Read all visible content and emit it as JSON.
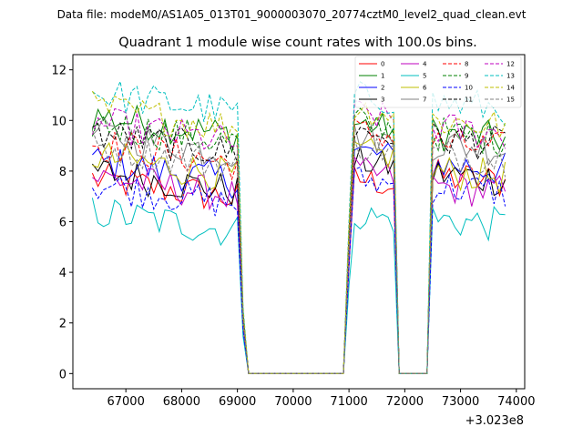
{
  "figure": {
    "suptitle": "Data file: modeM0/AS1A05_013T01_9000003070_20774cztM0_level2_quad_clean.evt"
  },
  "chart_data": {
    "type": "line",
    "title": "Quadrant 1 module wise count rates with 100.0s bins.",
    "xlabel": "",
    "ylabel": "",
    "x_offset_label": "+3.023e8",
    "x_offset": 302300000,
    "xlim": [
      66050,
      74150
    ],
    "ylim": [
      -0.6,
      12.6
    ],
    "xticks": [
      67000,
      68000,
      69000,
      70000,
      71000,
      72000,
      73000,
      74000
    ],
    "yticks": [
      0,
      2,
      4,
      6,
      8,
      10,
      12
    ],
    "xtick_labels": [
      "67000",
      "68000",
      "69000",
      "70000",
      "71000",
      "72000",
      "73000",
      "74000"
    ],
    "ytick_labels": [
      "0",
      "2",
      "4",
      "6",
      "8",
      "10",
      "12"
    ],
    "legend_position": "upper-right",
    "segments": [
      [
        66400,
        69200
      ],
      [
        69200,
        70900
      ],
      [
        70900,
        71800
      ],
      [
        71800,
        72400
      ],
      [
        72400,
        73800
      ]
    ],
    "series": [
      {
        "name": "0",
        "color": "#ff0000",
        "dash": "solid",
        "level": [
          7.2,
          7.7,
          7.5
        ]
      },
      {
        "name": "1",
        "color": "#008000",
        "dash": "solid",
        "level": [
          9.7,
          9.9,
          9.2
        ]
      },
      {
        "name": "2",
        "color": "#0000ff",
        "dash": "solid",
        "level": [
          7.9,
          8.8,
          8.0
        ]
      },
      {
        "name": "3",
        "color": "#000000",
        "dash": "solid",
        "level": [
          7.5,
          8.4,
          7.6
        ]
      },
      {
        "name": "4",
        "color": "#bf00bf",
        "dash": "solid",
        "level": [
          7.3,
          8.0,
          7.1
        ]
      },
      {
        "name": "5",
        "color": "#00bfbf",
        "dash": "solid",
        "level": [
          5.9,
          6.3,
          5.8
        ]
      },
      {
        "name": "6",
        "color": "#bfbf00",
        "dash": "solid",
        "level": [
          8.1,
          8.8,
          7.7
        ]
      },
      {
        "name": "7",
        "color": "#808080",
        "dash": "solid",
        "level": [
          9.0,
          9.4,
          8.8
        ]
      },
      {
        "name": "8",
        "color": "#ff0000",
        "dash": "dashed",
        "level": [
          8.6,
          9.6,
          8.8
        ]
      },
      {
        "name": "9",
        "color": "#008000",
        "dash": "dashed",
        "level": [
          9.4,
          10.0,
          9.2
        ]
      },
      {
        "name": "10",
        "color": "#0000ff",
        "dash": "dashed",
        "level": [
          7.0,
          7.7,
          7.1
        ]
      },
      {
        "name": "11",
        "color": "#000000",
        "dash": "dashed",
        "level": [
          9.0,
          9.6,
          9.0
        ]
      },
      {
        "name": "12",
        "color": "#bf00bf",
        "dash": "dashed",
        "level": [
          9.4,
          10.3,
          9.4
        ]
      },
      {
        "name": "13",
        "color": "#00bfbf",
        "dash": "dashed",
        "level": [
          10.6,
          11.0,
          10.4
        ]
      },
      {
        "name": "14",
        "color": "#bfbf00",
        "dash": "dashed",
        "level": [
          10.0,
          10.5,
          9.7
        ]
      },
      {
        "name": "15",
        "color": "#808080",
        "dash": "dashed",
        "level": [
          8.5,
          9.0,
          8.4
        ]
      }
    ]
  }
}
